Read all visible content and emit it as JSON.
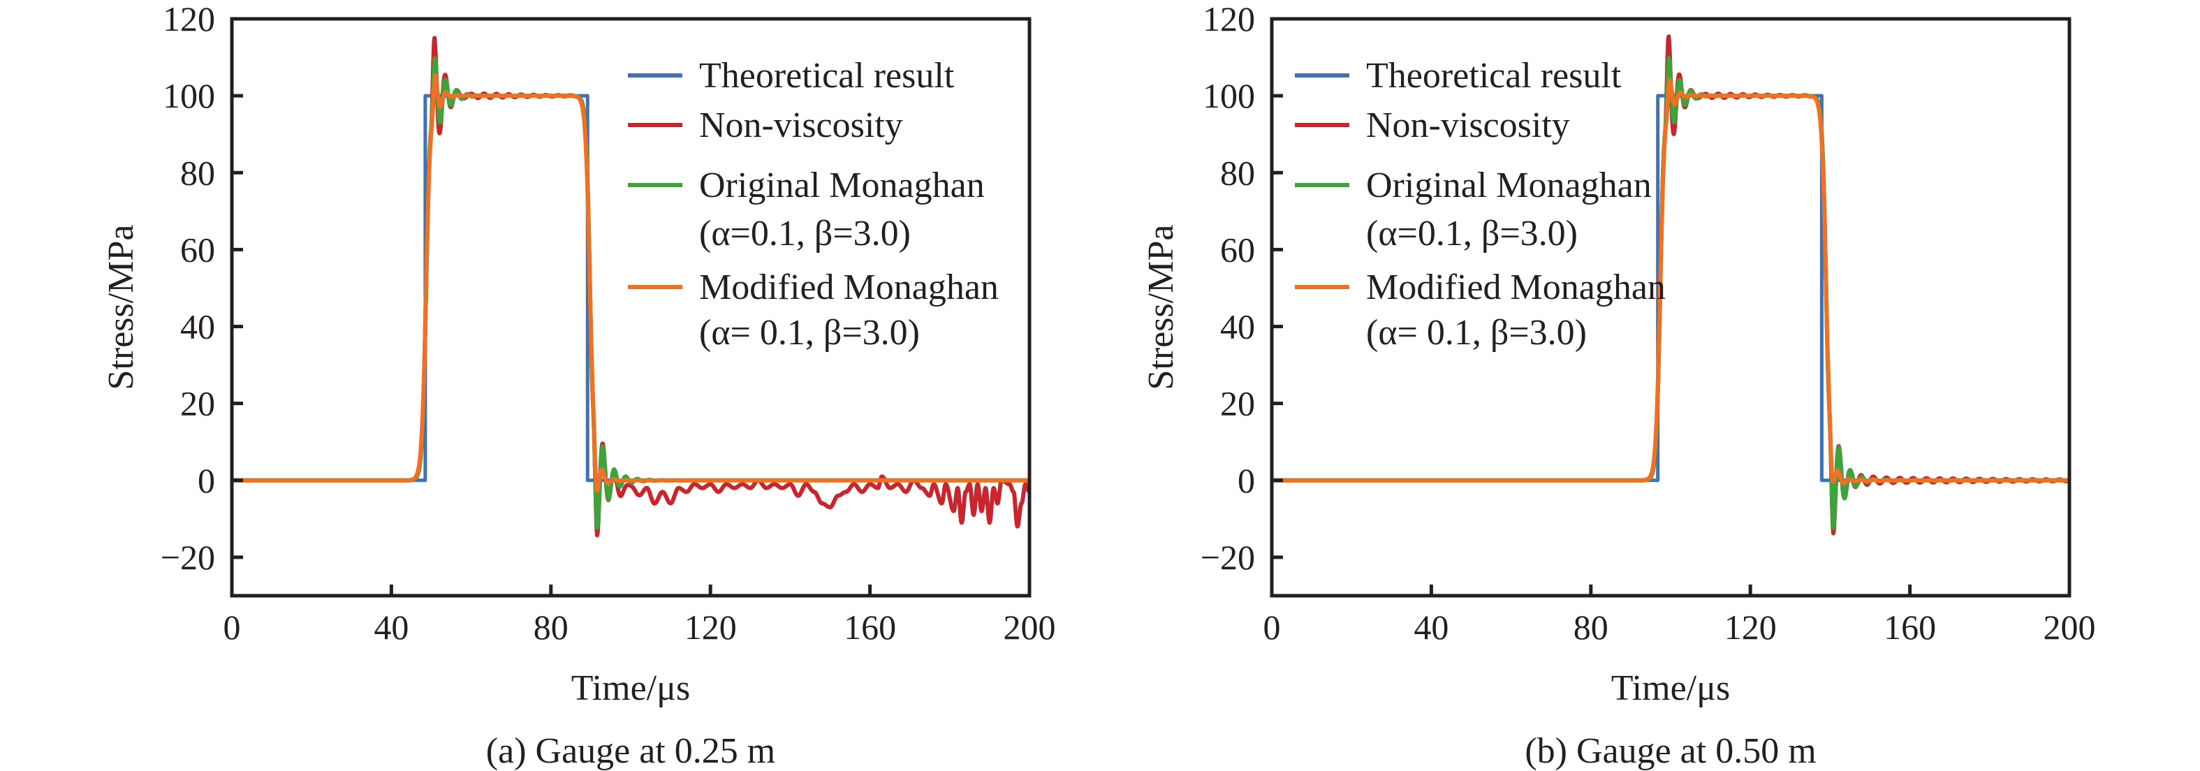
{
  "chart_data": [
    {
      "type": "line",
      "caption": "(a) Gauge at 0.25 m",
      "xlabel": "Time/μs",
      "ylabel": "Stress/MPa",
      "xlim": [
        0,
        200
      ],
      "ylim": [
        -30,
        120
      ],
      "xticks": [
        0,
        40,
        80,
        120,
        160,
        200
      ],
      "yticks": [
        120,
        100,
        80,
        60,
        40,
        20,
        0,
        -20
      ],
      "ytick_labels": [
        "120",
        "100",
        "80",
        "60",
        "40",
        "20",
        "0",
        "−20"
      ],
      "grid": false,
      "legend_placement": "top-right",
      "legend": [
        {
          "label": "Theoretical result"
        },
        {
          "label": "Non-viscosity"
        },
        {
          "label": "Original Monaghan",
          "sublabel": "(α=0.1, β=3.0)"
        },
        {
          "label": "Modified Monaghan",
          "sublabel": "(α= 0.1, β=3.0)"
        }
      ],
      "series": [
        {
          "name": "Theoretical result",
          "color": "#3f72b5",
          "kind": "step",
          "level": 100,
          "rise": 48.5,
          "fall": 89.2
        },
        {
          "name": "Non-viscosity",
          "color": "#c9252f",
          "kind": "sim",
          "level": 100,
          "rise": 48.7,
          "fall": 89.8,
          "width": 0.5,
          "events": [
            {
              "t": 50.8,
              "amp": 16.5,
              "tau": 2.2,
              "period": 2.7,
              "ripple": 1.5,
              "ripple_tau": 14
            },
            {
              "t": 91.6,
              "amp": -17,
              "tau": 2.4,
              "period": 2.9,
              "ripple": 0,
              "ripple_tau": 1
            }
          ],
          "tail": [
            [
              95,
              0
            ],
            [
              96,
              -1
            ],
            [
              98,
              -3
            ],
            [
              100,
              -1
            ],
            [
              102,
              -4
            ],
            [
              104,
              -2
            ],
            [
              106,
              -6
            ],
            [
              108,
              -3
            ],
            [
              110,
              -6
            ],
            [
              112,
              -2
            ],
            [
              114,
              -3
            ],
            [
              116,
              -1
            ],
            [
              118,
              -2
            ],
            [
              120,
              -1
            ],
            [
              122,
              -3
            ],
            [
              124,
              -1
            ],
            [
              126,
              -2
            ],
            [
              128,
              -1
            ],
            [
              130,
              -2
            ],
            [
              132,
              0
            ],
            [
              134,
              -2
            ],
            [
              136,
              -1
            ],
            [
              138,
              -2
            ],
            [
              140,
              -1
            ],
            [
              142,
              -4
            ],
            [
              144,
              -1
            ],
            [
              146,
              -3
            ],
            [
              148,
              -6
            ],
            [
              150,
              -7
            ],
            [
              152,
              -4
            ],
            [
              154,
              -3
            ],
            [
              156,
              -1
            ],
            [
              158,
              -3
            ],
            [
              160,
              -1
            ],
            [
              162,
              -2
            ],
            [
              163,
              1
            ],
            [
              165,
              -2
            ],
            [
              167,
              -1
            ],
            [
              169,
              -3
            ],
            [
              171,
              0
            ],
            [
              173,
              -2
            ],
            [
              175,
              -4
            ],
            [
              176,
              -1
            ],
            [
              178,
              -6
            ],
            [
              179,
              -1
            ],
            [
              181,
              -8
            ],
            [
              182,
              -2
            ],
            [
              183,
              -11
            ],
            [
              184,
              -3
            ],
            [
              185,
              -1
            ],
            [
              186,
              -9
            ],
            [
              187,
              -1
            ],
            [
              188,
              -8
            ],
            [
              189,
              -2
            ],
            [
              190,
              -11
            ],
            [
              191,
              -2
            ],
            [
              192,
              -6
            ],
            [
              193,
              0
            ],
            [
              195,
              -1
            ],
            [
              196,
              -3
            ],
            [
              197,
              -12
            ],
            [
              198,
              -6
            ],
            [
              199,
              -1
            ],
            [
              200,
              -3
            ]
          ]
        },
        {
          "name": "Original Monaghan (α=0.1, β=3.0)",
          "color": "#3ea33b",
          "kind": "sim",
          "level": 100,
          "rise": 48.7,
          "fall": 89.8,
          "width": 0.5,
          "events": [
            {
              "t": 50.9,
              "amp": 11,
              "tau": 2.7,
              "period": 2.7,
              "ripple": 0.4,
              "ripple_tau": 8
            },
            {
              "t": 91.6,
              "amp": -15,
              "tau": 2.6,
              "period": 2.9,
              "ripple": 0.3,
              "ripple_tau": 8
            }
          ]
        },
        {
          "name": "Modified Monaghan (α= 0.1, β=3.0)",
          "color": "#f07125",
          "kind": "sim",
          "level": 100,
          "rise": 48.7,
          "fall": 89.8,
          "width": 0.55,
          "events": [
            {
              "t": 51.0,
              "amp": 7,
              "tau": 1.4,
              "period": 2.8,
              "ripple": 0,
              "ripple_tau": 1
            },
            {
              "t": 91.5,
              "amp": -7,
              "tau": 1.3,
              "period": 3.0,
              "ripple": 0,
              "ripple_tau": 1
            }
          ]
        }
      ]
    },
    {
      "type": "line",
      "caption": "(b) Gauge at 0.50 m",
      "xlabel": "Time/μs",
      "ylabel": "Stress/MPa",
      "xlim": [
        0,
        200
      ],
      "ylim": [
        -30,
        120
      ],
      "xticks": [
        0,
        40,
        80,
        120,
        160,
        200
      ],
      "yticks": [
        120,
        100,
        80,
        60,
        40,
        20,
        0,
        -20
      ],
      "ytick_labels": [
        "120",
        "100",
        "80",
        "60",
        "40",
        "20",
        "0",
        "−20"
      ],
      "grid": false,
      "legend_placement": "top-left",
      "legend": [
        {
          "label": "Theoretical result"
        },
        {
          "label": "Non-viscosity"
        },
        {
          "label": "Original Monaghan",
          "sublabel": "(α=0.1, β=3.0)"
        },
        {
          "label": "Modified Monaghan",
          "sublabel": "(α= 0.1, β=3.0)"
        }
      ],
      "series": [
        {
          "name": "Theoretical result",
          "color": "#3f72b5",
          "kind": "step",
          "level": 100,
          "rise": 96.8,
          "fall": 137.9
        },
        {
          "name": "Non-viscosity",
          "color": "#c9252f",
          "kind": "sim",
          "level": 100,
          "rise": 97.4,
          "fall": 139.0,
          "width": 0.5,
          "events": [
            {
              "t": 99.5,
              "amp": 17,
              "tau": 2.2,
              "period": 2.7,
              "ripple": 1.3,
              "ripple_tau": 16
            },
            {
              "t": 140.8,
              "amp": -16.4,
              "tau": 2.4,
              "period": 2.9,
              "ripple": 1.0,
              "ripple_tau": 40
            }
          ]
        },
        {
          "name": "Original Monaghan (α=0.1, β=3.0)",
          "color": "#3ea33b",
          "kind": "sim",
          "level": 100,
          "rise": 97.4,
          "fall": 139.0,
          "width": 0.5,
          "events": [
            {
              "t": 99.6,
              "amp": 11,
              "tau": 2.6,
              "period": 2.7,
              "ripple": 0.4,
              "ripple_tau": 8
            },
            {
              "t": 140.8,
              "amp": -15,
              "tau": 2.5,
              "period": 2.9,
              "ripple": 0.3,
              "ripple_tau": 10
            }
          ]
        },
        {
          "name": "Modified Monaghan (α= 0.1, β=3.0)",
          "color": "#f07125",
          "kind": "sim",
          "level": 100,
          "rise": 97.4,
          "fall": 139.0,
          "width": 0.55,
          "events": [
            {
              "t": 99.8,
              "amp": 5.5,
              "tau": 1.4,
              "period": 2.8,
              "ripple": 0,
              "ripple_tau": 1
            },
            {
              "t": 140.6,
              "amp": -5,
              "tau": 1.6,
              "period": 3.0,
              "ripple": 0.2,
              "ripple_tau": 20
            }
          ]
        }
      ]
    }
  ]
}
